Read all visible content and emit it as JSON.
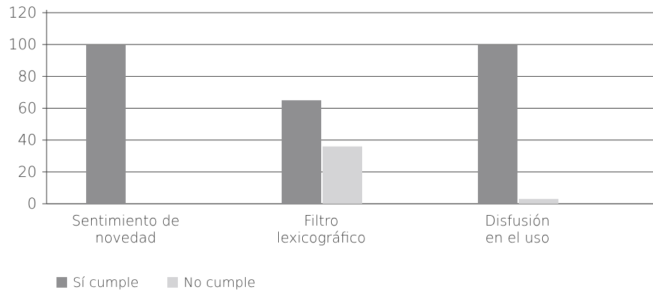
{
  "chart_data": {
    "type": "bar",
    "categories": [
      [
        "Sentimiento de",
        "novedad"
      ],
      [
        "Filtro",
        "lexicográfico"
      ],
      [
        "Disfusión",
        "en el uso"
      ]
    ],
    "series": [
      {
        "name": "Sí cumple",
        "values": [
          100,
          65,
          100
        ],
        "color": "#8f8f91"
      },
      {
        "name": "No cumple",
        "values": [
          0,
          36,
          3
        ],
        "color": "#d4d4d6"
      }
    ],
    "yticks": [
      0,
      20,
      40,
      60,
      80,
      100,
      120
    ],
    "ylim": [
      0,
      120
    ],
    "grid": true,
    "legend_position": "bottom-left"
  }
}
